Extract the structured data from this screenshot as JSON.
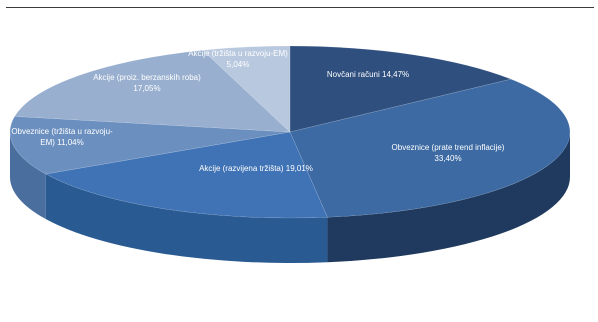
{
  "chart_data": {
    "type": "pie",
    "style": "3d",
    "title": "",
    "legend": "none",
    "slices": [
      {
        "label": "Novčani računi",
        "value": "14,47%",
        "v": 14.47,
        "color": "#2f4f7f",
        "side": "#1d3352",
        "lines": [
          "Novčani računi 14,47%"
        ]
      },
      {
        "label": "Obveznice (prate trend inflacije)",
        "value": "33,40%",
        "v": 33.4,
        "color": "#3d6aa3",
        "side": "#1f3a5e",
        "lines": [
          "Obveznice (prate trend inflacije)",
          "33,40%"
        ]
      },
      {
        "label": "Akcije (razvijena tržišta)",
        "value": "19,01%",
        "v": 19.01,
        "color": "#3f73b5",
        "side": "#2a5a92",
        "lines": [
          "Akcije (razvijena tržišta) 19,01%"
        ]
      },
      {
        "label": "Obveznice (tržišta u razvoju-EM)",
        "value": "11,04%",
        "v": 11.04,
        "color": "#6b8fbf",
        "side": "#4a6e9e",
        "lines": [
          "Obveznice (tržišta u razvoju-",
          "EM) 11,04%"
        ]
      },
      {
        "label": "Akcije (proiz. berzanskih roba)",
        "value": "17,05%",
        "v": 17.05,
        "color": "#98afcf",
        "side": "#7690b8",
        "lines": [
          "Akcije (proiz. berzanskih roba)",
          "17,05%"
        ]
      },
      {
        "label": "Akcije (tržišta u razvoju-EM)",
        "value": "5,04%",
        "v": 5.04,
        "color": "#b8c8de",
        "side": "#97abc9",
        "lines": [
          "Akcije (tržišta u razvoju-EM)",
          "5,04%"
        ]
      }
    ]
  }
}
